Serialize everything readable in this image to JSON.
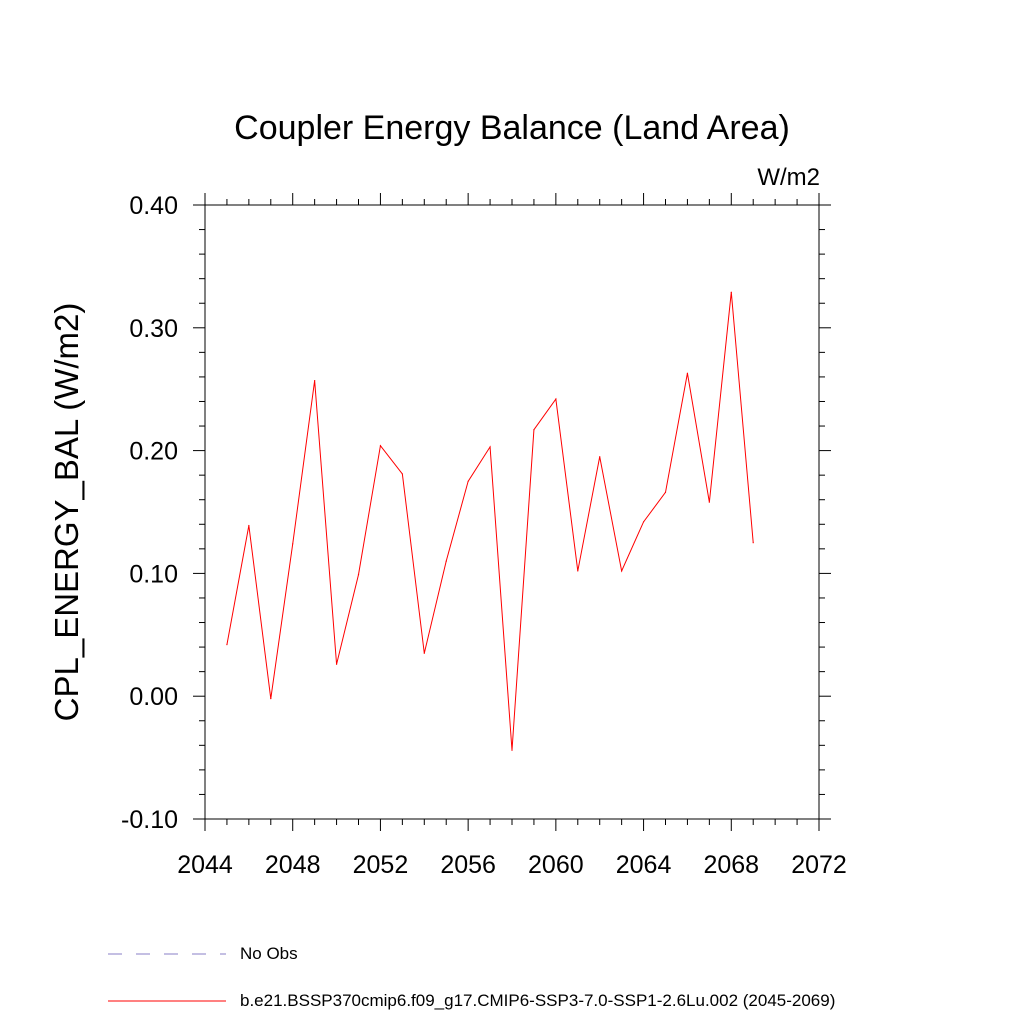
{
  "chart_data": {
    "type": "line",
    "title": "Coupler Energy Balance (Land Area)",
    "units": "W/m2",
    "ylabel": "CPL_ENERGY_BAL  (W/m2)",
    "xlabel": "",
    "xlim": [
      2044,
      2072
    ],
    "ylim": [
      -0.1,
      0.4
    ],
    "x_ticks": [
      "2044",
      "2048",
      "2052",
      "2056",
      "2060",
      "2064",
      "2068",
      "2072"
    ],
    "y_ticks": [
      "-0.10",
      "0.00",
      "0.10",
      "0.20",
      "0.30",
      "0.40"
    ],
    "x": [
      2045,
      2046,
      2047,
      2048,
      2049,
      2050,
      2051,
      2052,
      2053,
      2054,
      2055,
      2056,
      2057,
      2058,
      2059,
      2060,
      2061,
      2062,
      2063,
      2064,
      2065,
      2066,
      2067,
      2068,
      2069
    ],
    "series": [
      {
        "name": "b.e21.BSSP370cmip6.f09_g17.CMIP6-SSP3-7.0-SSP1-2.6Lu.002 (2045-2069)",
        "color": "#ff0000",
        "values": [
          0.042,
          0.139,
          -0.002,
          0.124,
          0.257,
          0.026,
          0.099,
          0.204,
          0.181,
          0.035,
          0.11,
          0.175,
          0.203,
          -0.044,
          0.217,
          0.242,
          0.102,
          0.195,
          0.102,
          0.142,
          0.166,
          0.263,
          0.158,
          0.329,
          0.125
        ]
      }
    ],
    "legend": {
      "placement": "bottom",
      "entries": [
        {
          "label": "No Obs",
          "style": "dashed",
          "color": "#8a7fc7"
        },
        {
          "label": "b.e21.BSSP370cmip6.f09_g17.CMIP6-SSP3-7.0-SSP1-2.6Lu.002 (2045-2069)",
          "style": "solid",
          "color": "#ff0000"
        }
      ]
    },
    "grid": false
  }
}
